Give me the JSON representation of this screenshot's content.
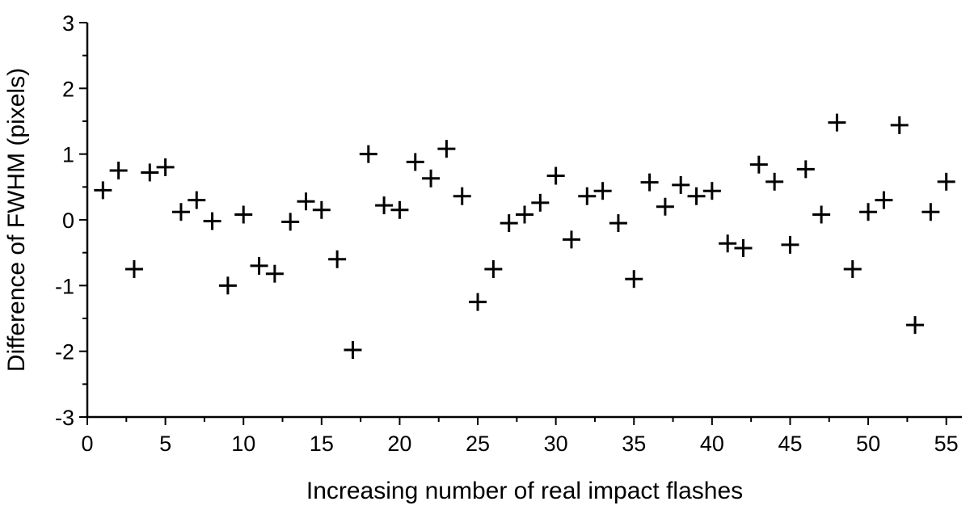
{
  "chart_data": {
    "type": "scatter",
    "title": "",
    "xlabel": "Increasing number of real impact flashes",
    "ylabel": "Difference of FWHM (pixels)",
    "xlim": [
      0,
      56
    ],
    "ylim": [
      -3,
      3
    ],
    "x_ticks": [
      0,
      5,
      10,
      15,
      20,
      25,
      30,
      35,
      40,
      45,
      50,
      55
    ],
    "y_ticks": [
      -3,
      -2,
      -1,
      0,
      1,
      2,
      3
    ],
    "x_tick_labels": [
      "0",
      "5",
      "10",
      "15",
      "20",
      "25",
      "30",
      "35",
      "40",
      "45",
      "50",
      "55"
    ],
    "y_tick_labels": [
      "-3",
      "-2",
      "-1",
      "0",
      "1",
      "2",
      "3"
    ],
    "grid": false,
    "marker": "plus",
    "marker_color": "#000000",
    "series": [
      {
        "x": [
          1,
          2,
          3,
          4,
          5,
          6,
          7,
          8,
          9,
          10,
          11,
          12,
          13,
          14,
          15,
          16,
          17,
          18,
          19,
          20,
          21,
          22,
          23,
          24,
          25,
          26,
          27,
          28,
          29,
          30,
          31,
          32,
          33,
          34,
          35,
          36,
          37,
          38,
          39,
          40,
          41,
          42,
          43,
          44,
          45,
          46,
          47,
          48,
          49,
          50,
          51,
          52,
          53,
          54,
          55
        ],
        "y": [
          0.45,
          0.75,
          -0.75,
          0.72,
          0.8,
          0.12,
          0.3,
          -0.02,
          -1.0,
          0.08,
          -0.7,
          -0.82,
          -0.03,
          0.28,
          0.15,
          -0.6,
          -1.98,
          1.0,
          0.22,
          0.15,
          0.88,
          0.63,
          1.08,
          0.36,
          -1.25,
          -0.75,
          -0.05,
          0.08,
          0.26,
          0.67,
          -0.3,
          0.36,
          0.44,
          -0.05,
          -0.9,
          0.57,
          0.2,
          0.53,
          0.36,
          0.44,
          -0.36,
          -0.43,
          0.84,
          0.58,
          -0.38,
          0.77,
          0.08,
          1.48,
          -0.75,
          0.12,
          0.3,
          1.44,
          -1.6,
          0.12,
          0.58
        ]
      }
    ]
  }
}
